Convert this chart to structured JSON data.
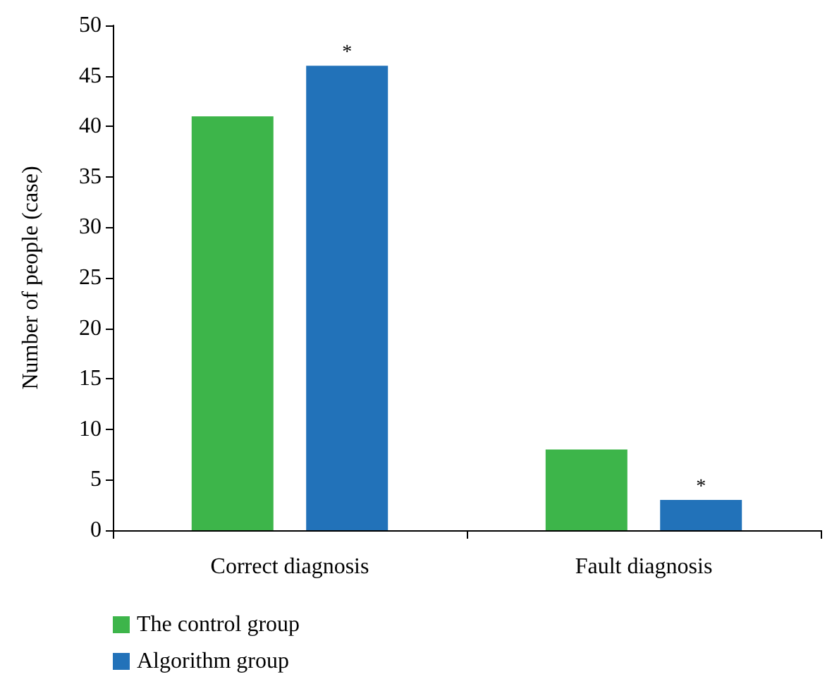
{
  "chart_data": {
    "type": "bar",
    "ylabel": "Number of people (case)",
    "categories": [
      "Correct diagnosis",
      "Fault diagnosis"
    ],
    "series": [
      {
        "name": "The control group",
        "color": "#3db54a",
        "values": [
          41,
          8
        ]
      },
      {
        "name": "Algorithm group",
        "color": "#2272b9",
        "values": [
          46,
          3
        ]
      }
    ],
    "ylim": [
      0,
      50
    ],
    "yticks": [
      0,
      5,
      10,
      15,
      20,
      25,
      30,
      35,
      40,
      45,
      50
    ],
    "grid": false,
    "legend": "bottom left",
    "annotations": [
      "*",
      "*"
    ]
  }
}
